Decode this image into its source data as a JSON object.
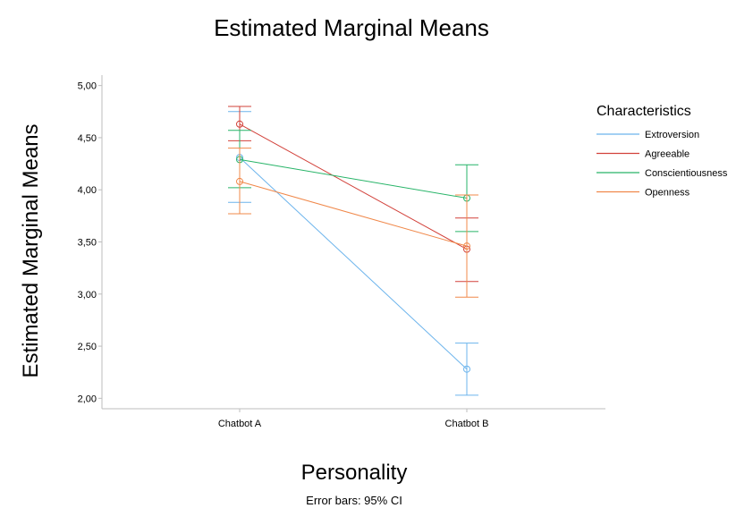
{
  "chart_data": {
    "type": "line",
    "title": "Estimated Marginal Means",
    "xlabel": "Personality",
    "ylabel": "Estimated Marginal Means",
    "caption": "Error bars: 95% CI",
    "categories": [
      "Chatbot A",
      "Chatbot B"
    ],
    "ylim": [
      1.9,
      5.1
    ],
    "yticks": [
      2.0,
      2.5,
      3.0,
      3.5,
      4.0,
      4.5,
      5.0
    ],
    "ytick_labels": [
      "2,00",
      "2,50",
      "3,00",
      "3,50",
      "4,00",
      "4,50",
      "5,00"
    ],
    "grid": false,
    "legend_title": "Characteristics",
    "legend_position": "right",
    "series": [
      {
        "name": "Extroversion",
        "color": "#6cb4ec",
        "values": [
          4.31,
          2.28
        ],
        "ci_low": [
          3.88,
          2.03
        ],
        "ci_high": [
          4.75,
          2.53
        ]
      },
      {
        "name": "Agreeable",
        "color": "#d2413a",
        "values": [
          4.63,
          3.43
        ],
        "ci_low": [
          4.47,
          3.12
        ],
        "ci_high": [
          4.8,
          3.73
        ]
      },
      {
        "name": "Conscientiousness",
        "color": "#27b468",
        "values": [
          4.29,
          3.92
        ],
        "ci_low": [
          4.02,
          3.6
        ],
        "ci_high": [
          4.57,
          4.24
        ]
      },
      {
        "name": "Openness",
        "color": "#f0884a",
        "values": [
          4.08,
          3.46
        ],
        "ci_low": [
          3.77,
          2.97
        ],
        "ci_high": [
          4.4,
          3.95
        ]
      }
    ]
  }
}
